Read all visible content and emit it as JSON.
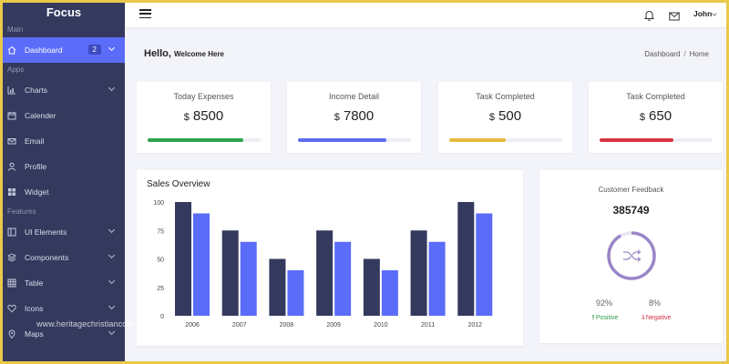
{
  "brand": "Focus",
  "sidebar": {
    "sections": [
      "Main",
      "Apps",
      "Features"
    ],
    "items": [
      {
        "label": "Dashboard",
        "icon": "home-icon",
        "badge": "2",
        "active": true
      },
      {
        "label": "Charts",
        "icon": "chart-icon",
        "chevron": true
      },
      {
        "label": "Calender",
        "icon": "calendar-icon"
      },
      {
        "label": "Email",
        "icon": "email-icon"
      },
      {
        "label": "Profile",
        "icon": "user-icon"
      },
      {
        "label": "Widget",
        "icon": "widget-icon"
      },
      {
        "label": "UI Elements",
        "icon": "elements-icon",
        "chevron": true
      },
      {
        "label": "Components",
        "icon": "components-icon",
        "chevron": true
      },
      {
        "label": "Table",
        "icon": "table-icon",
        "chevron": true
      },
      {
        "label": "Icons",
        "icon": "heart-icon",
        "chevron": true
      },
      {
        "label": "Maps",
        "icon": "map-pin-icon",
        "chevron": true
      }
    ]
  },
  "topbar": {
    "user": "John"
  },
  "header": {
    "hello": "Hello,",
    "welcome": "Welcome Here"
  },
  "breadcrumb": {
    "items": [
      "Dashboard",
      "Home"
    ],
    "separator": "/"
  },
  "stats": [
    {
      "label": "Today Expenses",
      "currency": "$",
      "value": "8500",
      "progress": 0.85,
      "color": "#2ea34d"
    },
    {
      "label": "Income Detail",
      "currency": "$",
      "value": "7800",
      "progress": 0.78,
      "color": "#5b6cf0"
    },
    {
      "label": "Task Completed",
      "currency": "$",
      "value": "500",
      "progress": 0.5,
      "color": "#e9b73f"
    },
    {
      "label": "Task Completed",
      "currency": "$",
      "value": "650",
      "progress": 0.65,
      "color": "#d7343f"
    }
  ],
  "sales": {
    "title": "Sales Overview"
  },
  "chart_data": {
    "type": "bar",
    "title": "Sales Overview",
    "categories": [
      "2006",
      "2007",
      "2008",
      "2009",
      "2010",
      "2011",
      "2012"
    ],
    "series": [
      {
        "values": [
          100,
          75,
          50,
          75,
          50,
          75,
          100
        ],
        "color": "#343a5e"
      },
      {
        "values": [
          90,
          65,
          40,
          65,
          40,
          65,
          90
        ],
        "color": "#5b6cf9"
      }
    ],
    "ylim": [
      0,
      100
    ],
    "yticks": [
      0,
      25,
      50,
      75,
      100
    ],
    "grid": false
  },
  "feedback": {
    "title": "Customer Feedback",
    "total": "385749",
    "positive_pct": "92%",
    "negative_pct": "8%",
    "positive_label": "Positive",
    "negative_label": "Negative",
    "positive_arrow": "⇑",
    "negative_arrow": "⇓",
    "ring_fraction": 0.92,
    "ring_color": "#9a86c8",
    "ring_track_color": "#e9e6f2"
  },
  "watermark": "www.heritagechristiancollege.com"
}
